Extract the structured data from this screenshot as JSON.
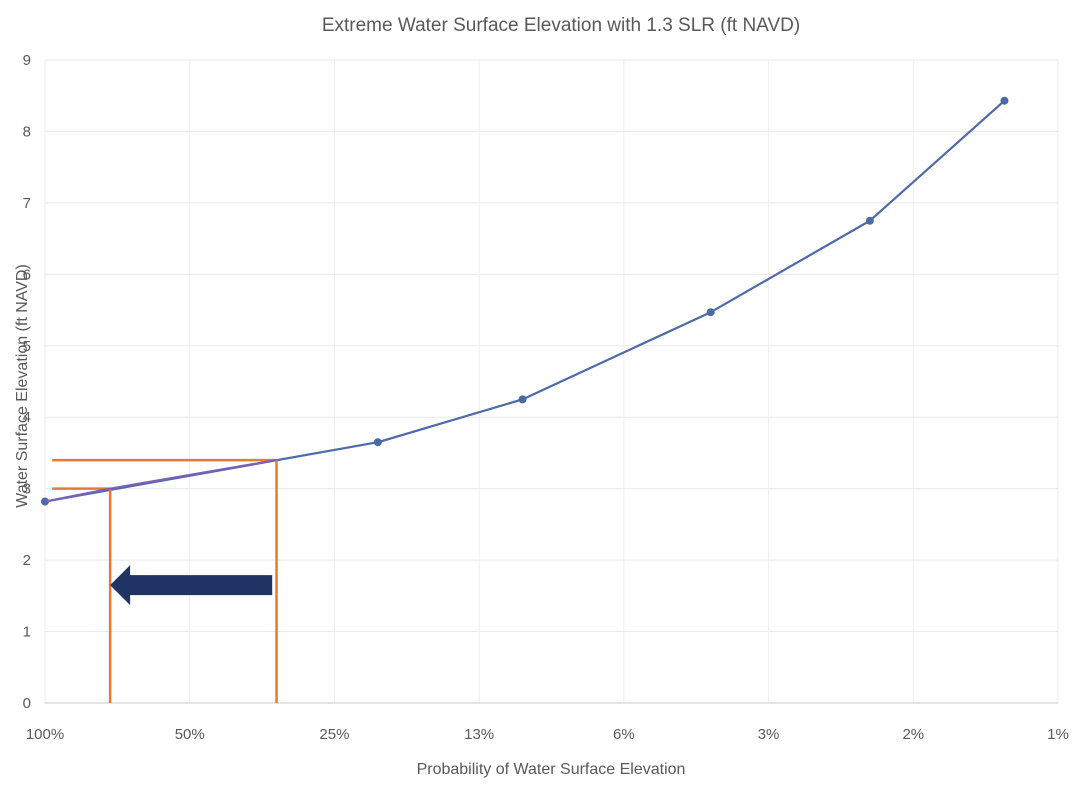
{
  "chart_data": {
    "type": "line",
    "title": "Extreme Water Surface Elevation with 1.3 SLR (ft NAVD)",
    "xlabel": "Probability of Water Surface Elevation",
    "ylabel": "Water Surface Elevation (ft NAVD)",
    "x_tick_labels": [
      "100%",
      "50%",
      "25%",
      "13%",
      "6%",
      "3%",
      "2%",
      "1%"
    ],
    "y_tick_labels": [
      "0",
      "1",
      "2",
      "3",
      "4",
      "5",
      "6",
      "7",
      "8",
      "9"
    ],
    "xlim": [
      0,
      7
    ],
    "ylim": [
      0,
      9
    ],
    "grid": true,
    "series": [
      {
        "x": [
          0,
          2.3,
          3.3,
          4.6,
          5.7,
          6.63
        ],
        "y": [
          2.82,
          3.65,
          4.25,
          5.47,
          6.75,
          8.43
        ],
        "color": "#4e6aa8",
        "marker_color": "#4a6aa4"
      }
    ],
    "annotations": {
      "interpolation_segment": {
        "x": [
          0,
          0.45,
          1.6
        ],
        "y": [
          2.82,
          3.0,
          3.4
        ],
        "color": "#7b5fb8"
      },
      "guide_lines": {
        "color": "#e9782c",
        "horizontal": [
          {
            "x": [
              0.05,
              0.45
            ],
            "y": 3.0
          },
          {
            "x": [
              0.05,
              1.6
            ],
            "y": 3.4
          }
        ],
        "vertical": [
          {
            "x": 0.45,
            "y": [
              0,
              3.0
            ]
          },
          {
            "x": 1.6,
            "y": [
              0,
              3.4
            ]
          }
        ]
      },
      "arrow": {
        "direction": "left",
        "from_x": 1.57,
        "to_x": 0.45,
        "y": 1.65,
        "color": "#1f3464"
      }
    }
  }
}
